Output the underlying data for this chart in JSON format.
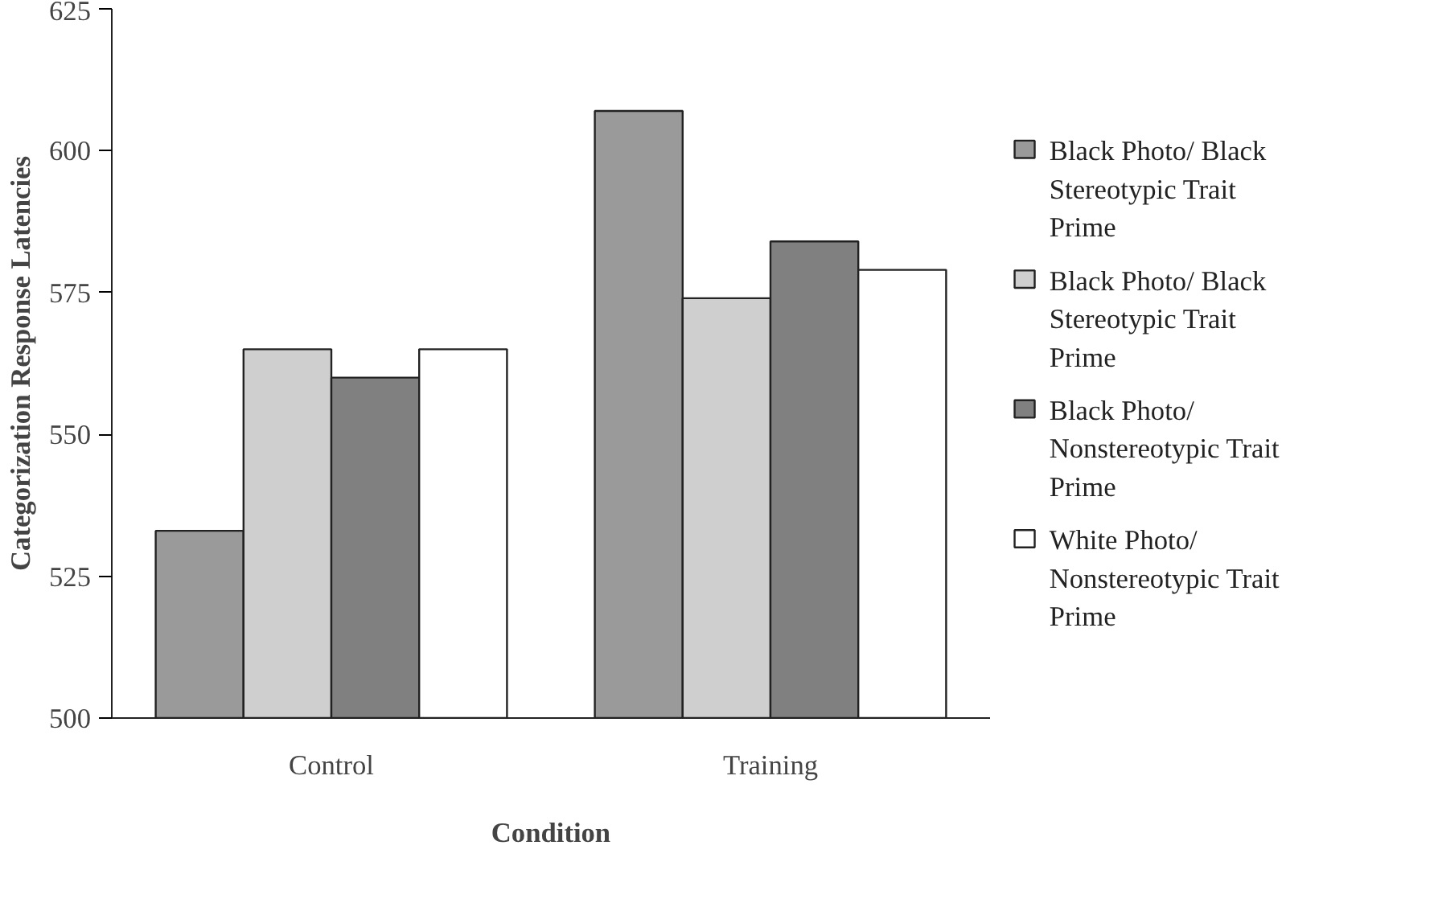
{
  "chart_data": {
    "type": "bar",
    "xlabel": "Condition",
    "ylabel": "Categorization Response Latencies",
    "categories": [
      "Control",
      "Training"
    ],
    "series": [
      {
        "name": "Black Photo/ Black Stereotypic Trait Prime",
        "color": "#999a99",
        "values": [
          533,
          607
        ]
      },
      {
        "name": "Black Photo/ Black Stereotypic Trait Prime",
        "color": "#cfcfcf",
        "values": [
          565,
          574
        ]
      },
      {
        "name": "Black Photo/ Nonstereotypic Trait Prime",
        "color": "#808080",
        "values": [
          560,
          584
        ]
      },
      {
        "name": "White Photo/ Nonstereotypic Trait Prime",
        "color": "#ffffff",
        "values": [
          565,
          579
        ]
      }
    ],
    "ylim": [
      500,
      625
    ],
    "yticks": [
      500,
      525,
      550,
      575,
      600,
      625
    ],
    "grid": false,
    "legend": "right"
  }
}
